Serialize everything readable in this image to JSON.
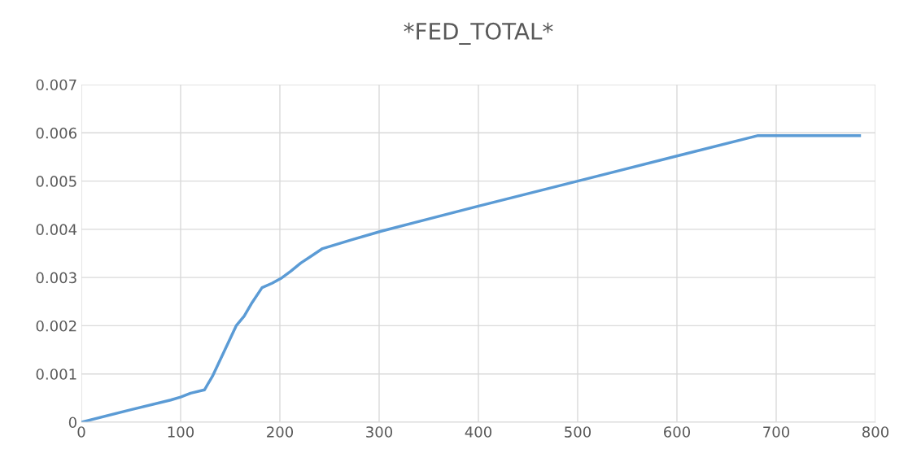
{
  "chart_data": {
    "type": "line",
    "title": "*FED_TOTAL*",
    "series": [
      {
        "color": "#5b9bd5",
        "x": [
          0,
          50,
          90,
          100,
          110,
          124,
          132,
          140,
          148,
          156,
          164,
          172,
          182,
          192,
          201,
          211,
          221,
          232,
          243,
          272,
          302,
          400,
          500,
          600,
          681,
          784
        ],
        "values": [
          0,
          0.00026,
          0.00046,
          0.00052,
          0.0006,
          0.00067,
          0.00095,
          0.0013,
          0.00165,
          0.002,
          0.0022,
          0.00248,
          0.00279,
          0.00288,
          0.00298,
          0.00313,
          0.0033,
          0.00345,
          0.0036,
          0.00378,
          0.00396,
          0.00448,
          0.005,
          0.00552,
          0.00594,
          0.00594
        ]
      }
    ],
    "xlim": [
      0,
      800
    ],
    "ylim": [
      0,
      0.007
    ],
    "xticks": [
      0,
      100,
      200,
      300,
      400,
      500,
      600,
      700,
      800
    ],
    "yticks": [
      0,
      0.001,
      0.002,
      0.003,
      0.004,
      0.005,
      0.006,
      0.007
    ],
    "grid": true,
    "legend": false,
    "marker": "none",
    "line_style": "solid"
  }
}
